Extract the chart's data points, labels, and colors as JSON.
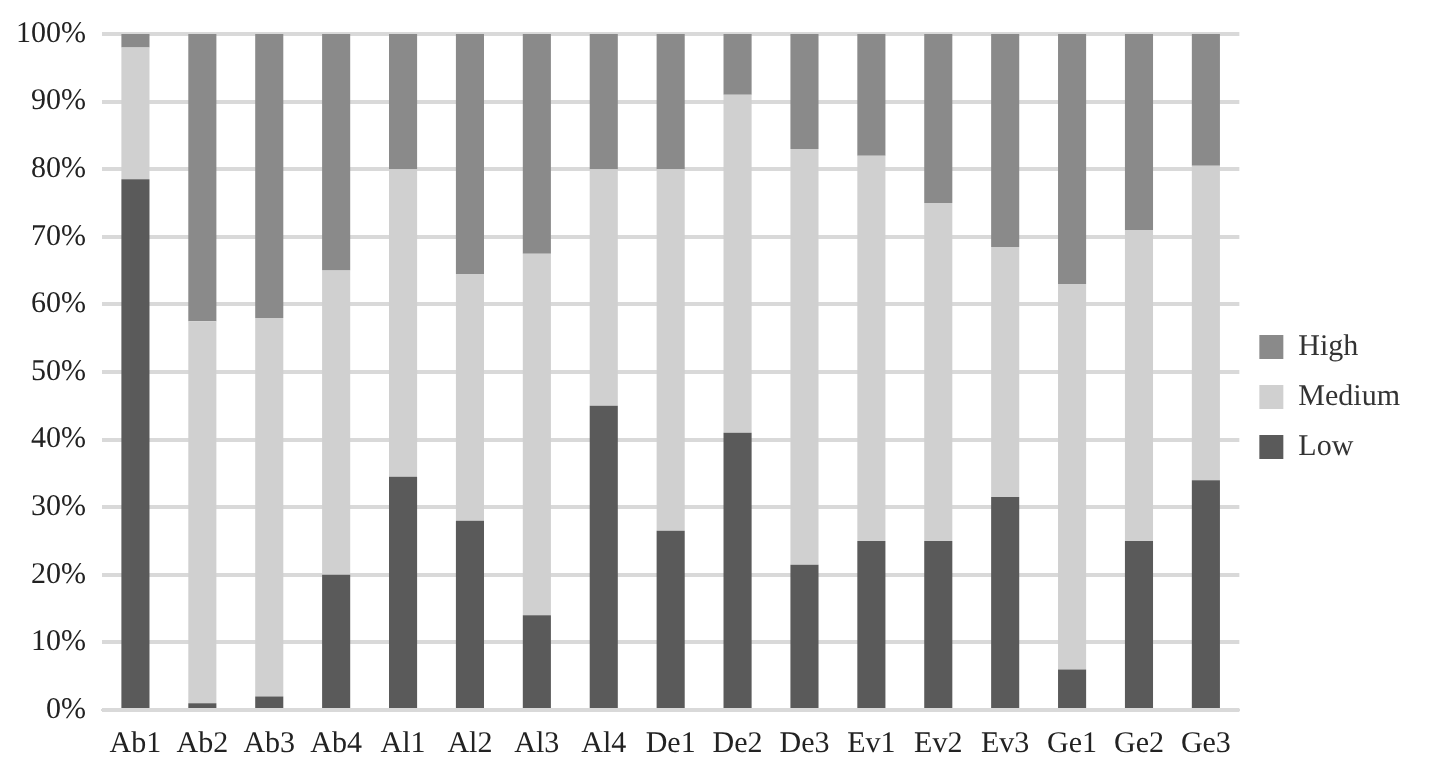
{
  "chart_data": {
    "type": "bar",
    "stacked": true,
    "categories": [
      "Ab1",
      "Ab2",
      "Ab3",
      "Ab4",
      "Al1",
      "Al2",
      "Al3",
      "Al4",
      "De1",
      "De2",
      "De3",
      "Ev1",
      "Ev2",
      "Ev3",
      "Ge1",
      "Ge2",
      "Ge3"
    ],
    "series": [
      {
        "name": "Low",
        "color": "#5a5a5a",
        "values": [
          78.5,
          1,
          2,
          20,
          34.5,
          28,
          14,
          45,
          26.5,
          41,
          21.5,
          25,
          25,
          31.5,
          6,
          25,
          34
        ]
      },
      {
        "name": "Medium",
        "color": "#d0d0d0",
        "values": [
          19.5,
          56.5,
          56,
          45,
          45.5,
          36.5,
          53.5,
          35,
          53.5,
          50,
          61.5,
          57,
          50,
          37,
          57,
          46,
          46.5
        ]
      },
      {
        "name": "High",
        "color": "#8a8a8a",
        "values": [
          2,
          42.5,
          42,
          35,
          20,
          35.5,
          32.5,
          20,
          20,
          9,
          17,
          18,
          25,
          31.5,
          37,
          29,
          19.5
        ]
      }
    ],
    "ylim": [
      0,
      100
    ],
    "yticks": [
      {
        "value": 0,
        "label": "0%"
      },
      {
        "value": 10,
        "label": "10%"
      },
      {
        "value": 20,
        "label": "20%"
      },
      {
        "value": 30,
        "label": "30%"
      },
      {
        "value": 40,
        "label": "40%"
      },
      {
        "value": 50,
        "label": "50%"
      },
      {
        "value": 60,
        "label": "60%"
      },
      {
        "value": 70,
        "label": "70%"
      },
      {
        "value": 80,
        "label": "80%"
      },
      {
        "value": 90,
        "label": "90%"
      },
      {
        "value": 100,
        "label": "100%"
      }
    ],
    "grid": "y",
    "legend": "right"
  }
}
